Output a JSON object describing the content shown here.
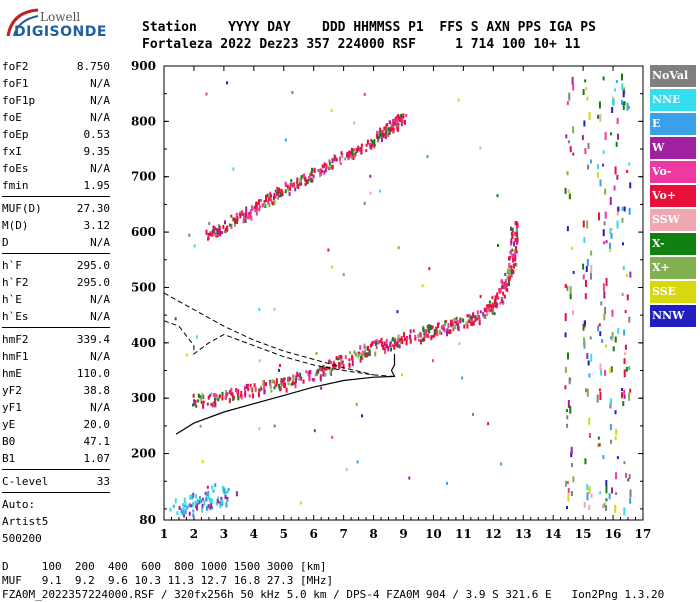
{
  "logo": {
    "line1": "Lowell",
    "line2": "DIGISONDE"
  },
  "header": {
    "labels": "Station    YYYY DAY    DDD HHMMSS P1  FFS S AXN PPS IGA PS",
    "values": "Fortaleza 2022 Dez23 357 224000 RSF     1 714 100 10+ 11"
  },
  "params": {
    "group1": [
      {
        "k": "foF2",
        "v": "8.750"
      },
      {
        "k": "foF1",
        "v": "N/A"
      },
      {
        "k": "foF1p",
        "v": "N/A"
      },
      {
        "k": "foE",
        "v": "N/A"
      },
      {
        "k": "foEp",
        "v": "0.53"
      },
      {
        "k": "fxI",
        "v": "9.35"
      },
      {
        "k": "foEs",
        "v": "N/A"
      },
      {
        "k": "fmin",
        "v": "1.95"
      }
    ],
    "group2": [
      {
        "k": "MUF(D)",
        "v": "27.30"
      },
      {
        "k": "M(D)",
        "v": "3.12"
      },
      {
        "k": "D",
        "v": "N/A"
      }
    ],
    "group3": [
      {
        "k": "h`F",
        "v": "295.0"
      },
      {
        "k": "h`F2",
        "v": "295.0"
      },
      {
        "k": "h`E",
        "v": "N/A"
      },
      {
        "k": "h`Es",
        "v": "N/A"
      }
    ],
    "group4": [
      {
        "k": "hmF2",
        "v": "339.4"
      },
      {
        "k": "hmF1",
        "v": "N/A"
      },
      {
        "k": "hmE",
        "v": "110.0"
      },
      {
        "k": "yF2",
        "v": "38.8"
      },
      {
        "k": "yF1",
        "v": "N/A"
      },
      {
        "k": "yE",
        "v": "20.0"
      },
      {
        "k": "B0",
        "v": "47.1"
      },
      {
        "k": "B1",
        "v": "1.07"
      }
    ],
    "clevel": {
      "k": "C-level",
      "v": "33"
    },
    "auto": [
      "Auto:",
      "Artist5",
      "500200"
    ]
  },
  "legend": [
    {
      "label": "NoVal",
      "color": "#808080"
    },
    {
      "label": "NNE",
      "color": "#33ddee"
    },
    {
      "label": "E",
      "color": "#3aa0e8"
    },
    {
      "label": "W",
      "color": "#a020a0"
    },
    {
      "label": "Vo-",
      "color": "#ee3aa0"
    },
    {
      "label": "Vo+",
      "color": "#e6103a"
    },
    {
      "label": "SSW",
      "color": "#f0a8b0"
    },
    {
      "label": "X-",
      "color": "#108010"
    },
    {
      "label": "X+",
      "color": "#80b050"
    },
    {
      "label": "SSE",
      "color": "#d8d810"
    },
    {
      "label": "NNW",
      "color": "#2020c0"
    }
  ],
  "footer": {
    "line1": "D     100  200  400  600  800 1000 1500 3000 [km]",
    "line2": "MUF   9.1  9.2  9.6 10.3 11.3 12.7 16.8 27.3 [MHz]",
    "line3": "FZA0M_2022357224000.RSF / 320fx256h 50 kHz 5.0 km / DPS-4 FZA0M 904 / 3.9 S 321.6 E   Ion2Png 1.3.20"
  },
  "chart_data": {
    "type": "scatter",
    "x_ticks": [
      "1",
      "2",
      "3",
      "4",
      "5",
      "6",
      "7",
      "8",
      "9",
      "10",
      "11",
      "12",
      "13",
      "14",
      "15",
      "16",
      "17"
    ],
    "y_ticks": [
      "80",
      "200",
      "300",
      "400",
      "500",
      "600",
      "700",
      "800",
      "900"
    ],
    "xlim": [
      1,
      17
    ],
    "ylim": [
      80,
      900
    ],
    "grid": false,
    "trace_bands": [
      {
        "name": "F2 O-trace",
        "points": [
          [
            2.0,
            297
          ],
          [
            3,
            305
          ],
          [
            4,
            318
          ],
          [
            5,
            330
          ],
          [
            6,
            345
          ],
          [
            7,
            370
          ],
          [
            8,
            395
          ],
          [
            9,
            410
          ],
          [
            10,
            425
          ],
          [
            11,
            440
          ],
          [
            11.8,
            460
          ],
          [
            12.3,
            495
          ],
          [
            12.6,
            540
          ],
          [
            12.7,
            620
          ]
        ]
      },
      {
        "name": "F2 multiple",
        "points": [
          [
            2.4,
            595
          ],
          [
            3,
            615
          ],
          [
            4,
            645
          ],
          [
            5,
            680
          ],
          [
            6,
            710
          ],
          [
            7,
            740
          ],
          [
            7.8,
            760
          ],
          [
            8.5,
            790
          ],
          [
            9,
            810
          ]
        ]
      },
      {
        "name": "Sporadic low",
        "points": [
          [
            1.6,
            100
          ],
          [
            1.9,
            110
          ],
          [
            2.2,
            115
          ],
          [
            2.5,
            118
          ],
          [
            2.8,
            125
          ],
          [
            3.0,
            140
          ]
        ]
      }
    ],
    "profile_solid": [
      [
        1.4,
        235
      ],
      [
        2.0,
        255
      ],
      [
        3.0,
        275
      ],
      [
        4,
        290
      ],
      [
        5,
        305
      ],
      [
        6,
        320
      ],
      [
        7,
        332
      ],
      [
        8,
        338
      ],
      [
        8.7,
        339.4
      ],
      [
        8.6,
        350
      ],
      [
        8.7,
        360
      ],
      [
        8.7,
        380
      ]
    ],
    "profile_dashed": [
      [
        1.0,
        440
      ],
      [
        1.5,
        430
      ],
      [
        2,
        395
      ],
      [
        2,
        380
      ],
      [
        2.5,
        400
      ],
      [
        3,
        415
      ],
      [
        4,
        395
      ],
      [
        5,
        375
      ],
      [
        6,
        360
      ],
      [
        7,
        350
      ],
      [
        8,
        342
      ],
      [
        8.75,
        339
      ]
    ],
    "profile_dashed_top": [
      [
        1.0,
        490
      ],
      [
        2,
        460
      ],
      [
        3,
        430
      ],
      [
        4,
        405
      ],
      [
        5,
        385
      ],
      [
        6,
        370
      ],
      [
        7,
        355
      ],
      [
        8,
        342
      ]
    ],
    "right_columns": [
      14.5,
      15.1,
      15.6,
      16.0,
      16.4
    ]
  }
}
